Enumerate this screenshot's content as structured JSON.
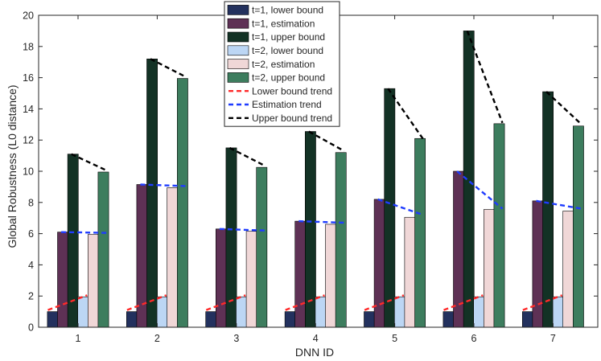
{
  "chart_data": {
    "type": "bar",
    "title": "",
    "xlabel": "DNN ID",
    "ylabel": "Global Robustness (L0 distance)",
    "ylim": [
      0,
      20
    ],
    "yticks": [
      0,
      2,
      4,
      6,
      8,
      10,
      12,
      14,
      16,
      18,
      20
    ],
    "categories": [
      "1",
      "2",
      "3",
      "4",
      "5",
      "6",
      "7"
    ],
    "grid": false,
    "legend_position": "top-center",
    "series": [
      {
        "name": "t=1, lower bound",
        "color": "#23315e",
        "values": [
          1,
          1,
          1,
          1,
          1,
          1,
          1
        ]
      },
      {
        "name": "t=1, estimation",
        "color": "#5e3155",
        "values": [
          6.1,
          9.15,
          6.3,
          6.8,
          8.2,
          10,
          8.1
        ]
      },
      {
        "name": "t=1, upper bound",
        "color": "#133225",
        "values": [
          11.1,
          17.2,
          11.5,
          12.55,
          15.3,
          19,
          15.1
        ]
      },
      {
        "name": "t=2, lower bound",
        "color": "#bcd6f4",
        "values": [
          1.95,
          1.95,
          1.95,
          1.95,
          1.95,
          1.95,
          1.95
        ]
      },
      {
        "name": "t=2, estimation",
        "color": "#f0d7d7",
        "values": [
          5.95,
          8.95,
          6.15,
          6.6,
          7.05,
          7.55,
          7.45
        ]
      },
      {
        "name": "t=2, upper bound",
        "color": "#3d7d5e",
        "values": [
          9.95,
          15.95,
          10.25,
          11.2,
          12.1,
          13.05,
          12.9
        ]
      }
    ],
    "trends": [
      {
        "name": "Lower bound trend",
        "color": "#ff2a2a",
        "bound": "lower",
        "from": 1.1,
        "to": 2.05
      },
      {
        "name": "Estimation trend",
        "color": "#1f3cff",
        "bound": "estimation",
        "to": [
          6.05,
          9.05,
          6.2,
          6.7,
          7.2,
          7.6,
          7.6
        ]
      },
      {
        "name": "Upper bound trend",
        "color": "#000000",
        "bound": "upper",
        "to": [
          10.05,
          16.05,
          10.35,
          11.3,
          12.05,
          13.1,
          13.0
        ]
      }
    ]
  }
}
